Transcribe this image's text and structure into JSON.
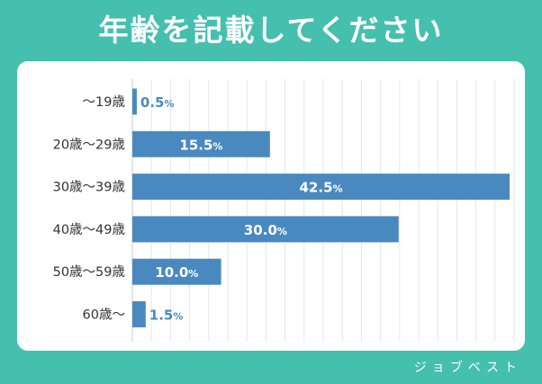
{
  "title": "年齢を記載してください",
  "footer": "ジョブベスト",
  "colors": {
    "background": "#45bfae",
    "bar": "#4a89c0",
    "panel": "#ffffff"
  },
  "chart_data": {
    "type": "bar",
    "orientation": "horizontal",
    "categories": [
      "～19歳",
      "20歳～29歳",
      "30歳～39歳",
      "40歳～49歳",
      "50歳～59歳",
      "60歳～"
    ],
    "values": [
      0.5,
      15.5,
      42.5,
      30.0,
      10.0,
      1.5
    ],
    "value_labels": [
      "0.5",
      "15.5",
      "42.5",
      "30.0",
      "10.0",
      "1.5"
    ],
    "unit": "%",
    "xlim": [
      0,
      43
    ],
    "grid": true
  }
}
